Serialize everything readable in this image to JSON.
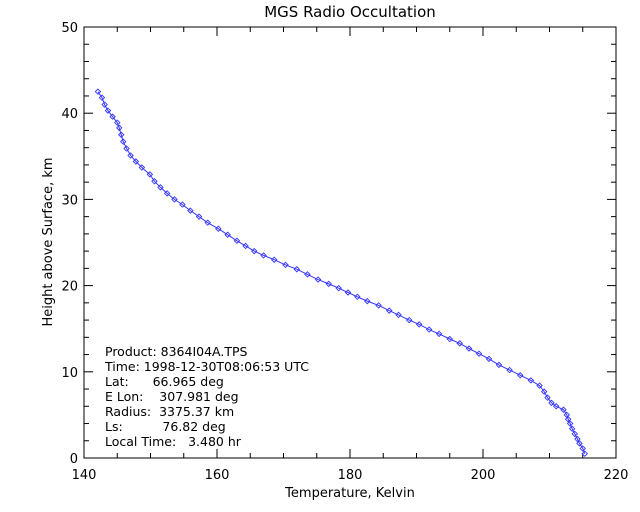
{
  "chart_data": {
    "type": "line",
    "title": "MGS Radio Occultation",
    "xlabel": "Temperature, Kelvin",
    "ylabel": "Height above Surface, km",
    "xlim": [
      140,
      220
    ],
    "ylim": [
      0,
      50
    ],
    "xticks": [
      140,
      160,
      180,
      200,
      220
    ],
    "yticks": [
      0,
      10,
      20,
      30,
      40,
      50
    ],
    "grid": false,
    "series_color": "#3333ff",
    "marker": "diamond",
    "annotations": [
      "Product: 8364I04A.TPS",
      "Time: 1998-12-30T08:06:53 UTC",
      "Lat:      66.965 deg",
      "E Lon:    307.981 deg",
      "Radius:  3375.37 km",
      "Ls:          76.82 deg",
      "Local Time:   3.480 hr"
    ],
    "series": [
      {
        "x": [
          142.1,
          142.7,
          143.1,
          143.6,
          144.3,
          145.0,
          145.3,
          145.6,
          145.9,
          146.4,
          147.0,
          147.8,
          148.7,
          149.9,
          150.6,
          151.5,
          152.5,
          153.6,
          154.8,
          156.0,
          157.3,
          158.6,
          160.2,
          161.6,
          163.0,
          164.3,
          165.6,
          167.0,
          168.6,
          170.3,
          172.0,
          173.6,
          175.2,
          176.8,
          178.3,
          179.7,
          181.1,
          182.6,
          184.3,
          185.9,
          187.3,
          188.9,
          190.4,
          191.9,
          193.4,
          195.0,
          196.5,
          197.9,
          199.4,
          200.9,
          202.4,
          204.0,
          205.6,
          207.2,
          208.5,
          209.2,
          209.7,
          210.3,
          211.0,
          212.1,
          212.6,
          212.8,
          213.1,
          213.4,
          213.8,
          214.2,
          214.5,
          215.0,
          215.3
        ],
        "y": [
          42.5,
          41.8,
          41.0,
          40.3,
          39.6,
          38.9,
          38.3,
          37.5,
          36.7,
          35.9,
          35.1,
          34.4,
          33.7,
          32.9,
          32.1,
          31.4,
          30.7,
          30.0,
          29.4,
          28.7,
          28.0,
          27.3,
          26.6,
          25.9,
          25.2,
          24.6,
          24.0,
          23.5,
          23.0,
          22.4,
          21.9,
          21.3,
          20.7,
          20.2,
          19.7,
          19.2,
          18.7,
          18.2,
          17.7,
          17.1,
          16.6,
          16.0,
          15.5,
          14.9,
          14.4,
          13.8,
          13.3,
          12.7,
          12.1,
          11.5,
          10.8,
          10.2,
          9.6,
          9.0,
          8.4,
          7.7,
          7.0,
          6.4,
          6.0,
          5.6,
          5.0,
          4.5,
          4.0,
          3.4,
          2.8,
          2.2,
          1.7,
          1.1,
          0.5
        ]
      }
    ]
  }
}
